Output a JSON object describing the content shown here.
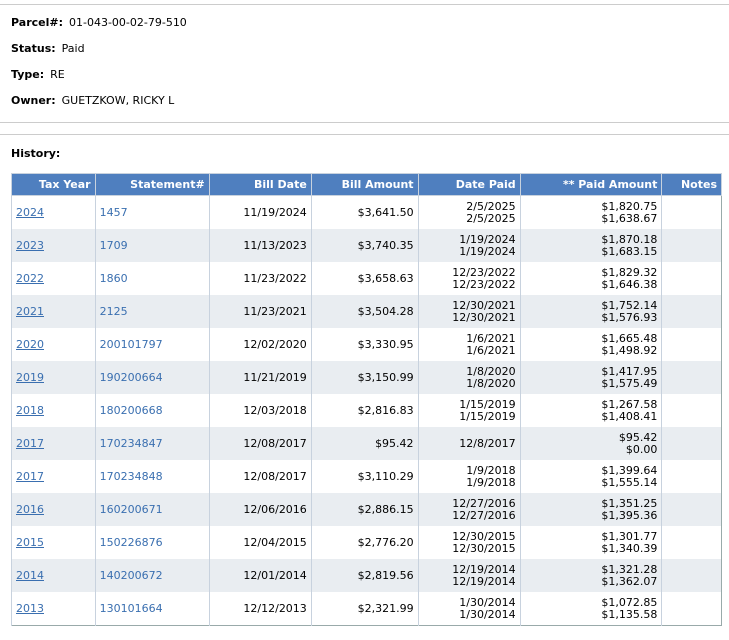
{
  "fields": [
    {
      "label": "Parcel#:",
      "value": "01-043-00-02-79-510"
    },
    {
      "label": "Status:",
      "value": "Paid"
    },
    {
      "label": "Type:",
      "value": "RE"
    },
    {
      "label": "Owner:",
      "value": "GUETZKOW, RICKY L"
    }
  ],
  "history_label": "History:",
  "table": {
    "headers": [
      "Tax Year",
      "Statement#",
      "Bill Date",
      "Bill Amount",
      "Date Paid",
      "** Paid Amount",
      "Notes"
    ],
    "rows": [
      {
        "tax_year": "2024",
        "statement": "1457",
        "bill_date": "11/19/2024",
        "bill_amount": "$3,641.50",
        "date_paid": [
          "2/5/2025",
          "2/5/2025"
        ],
        "paid_amount": [
          "$1,820.75",
          "$1,638.67"
        ]
      },
      {
        "tax_year": "2023",
        "statement": "1709",
        "bill_date": "11/13/2023",
        "bill_amount": "$3,740.35",
        "date_paid": [
          "1/19/2024",
          "1/19/2024"
        ],
        "paid_amount": [
          "$1,870.18",
          "$1,683.15"
        ]
      },
      {
        "tax_year": "2022",
        "statement": "1860",
        "bill_date": "11/23/2022",
        "bill_amount": "$3,658.63",
        "date_paid": [
          "12/23/2022",
          "12/23/2022"
        ],
        "paid_amount": [
          "$1,829.32",
          "$1,646.38"
        ]
      },
      {
        "tax_year": "2021",
        "statement": "2125",
        "bill_date": "11/23/2021",
        "bill_amount": "$3,504.28",
        "date_paid": [
          "12/30/2021",
          "12/30/2021"
        ],
        "paid_amount": [
          "$1,752.14",
          "$1,576.93"
        ]
      },
      {
        "tax_year": "2020",
        "statement": "200101797",
        "bill_date": "12/02/2020",
        "bill_amount": "$3,330.95",
        "date_paid": [
          "1/6/2021",
          "1/6/2021"
        ],
        "paid_amount": [
          "$1,665.48",
          "$1,498.92"
        ]
      },
      {
        "tax_year": "2019",
        "statement": "190200664",
        "bill_date": "11/21/2019",
        "bill_amount": "$3,150.99",
        "date_paid": [
          "1/8/2020",
          "1/8/2020"
        ],
        "paid_amount": [
          "$1,417.95",
          "$1,575.49"
        ]
      },
      {
        "tax_year": "2018",
        "statement": "180200668",
        "bill_date": "12/03/2018",
        "bill_amount": "$2,816.83",
        "date_paid": [
          "1/15/2019",
          "1/15/2019"
        ],
        "paid_amount": [
          "$1,267.58",
          "$1,408.41"
        ]
      },
      {
        "tax_year": "2017",
        "statement": "170234847",
        "bill_date": "12/08/2017",
        "bill_amount": "$95.42",
        "date_paid": [
          "12/8/2017"
        ],
        "paid_amount": [
          "$95.42",
          "$0.00"
        ]
      },
      {
        "tax_year": "2017",
        "statement": "170234848",
        "bill_date": "12/08/2017",
        "bill_amount": "$3,110.29",
        "date_paid": [
          "1/9/2018",
          "1/9/2018"
        ],
        "paid_amount": [
          "$1,399.64",
          "$1,555.14"
        ]
      },
      {
        "tax_year": "2016",
        "statement": "160200671",
        "bill_date": "12/06/2016",
        "bill_amount": "$2,886.15",
        "date_paid": [
          "12/27/2016",
          "12/27/2016"
        ],
        "paid_amount": [
          "$1,351.25",
          "$1,395.36"
        ]
      },
      {
        "tax_year": "2015",
        "statement": "150226876",
        "bill_date": "12/04/2015",
        "bill_amount": "$2,776.20",
        "date_paid": [
          "12/30/2015",
          "12/30/2015"
        ],
        "paid_amount": [
          "$1,301.77",
          "$1,340.39"
        ]
      },
      {
        "tax_year": "2014",
        "statement": "140200672",
        "bill_date": "12/01/2014",
        "bill_amount": "$2,819.56",
        "date_paid": [
          "12/19/2014",
          "12/19/2014"
        ],
        "paid_amount": [
          "$1,321.28",
          "$1,362.07"
        ]
      },
      {
        "tax_year": "2013",
        "statement": "130101664",
        "bill_date": "12/12/2013",
        "bill_amount": "$2,321.99",
        "date_paid": [
          "1/30/2014",
          "1/30/2014"
        ],
        "paid_amount": [
          "$1,072.85",
          "$1,135.58"
        ]
      }
    ]
  }
}
